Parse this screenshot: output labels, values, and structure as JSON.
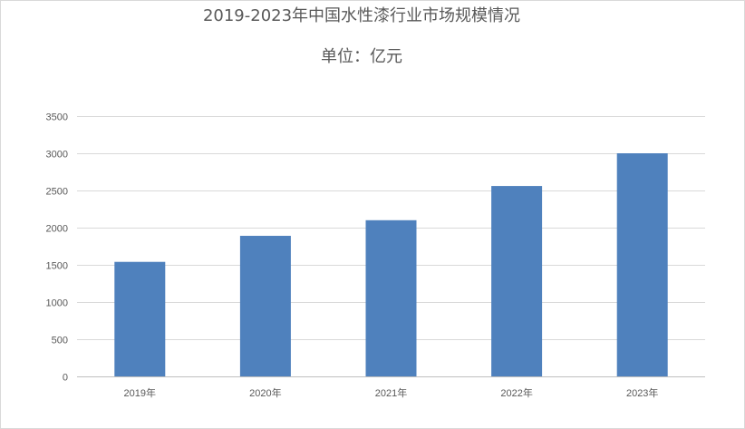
{
  "chart_data": {
    "type": "bar",
    "title": "2019-2023年中国水性漆行业市场规模情况",
    "subtitle": "单位：亿元",
    "categories": [
      "2019年",
      "2020年",
      "2021年",
      "2022年",
      "2023年"
    ],
    "values": [
      1540,
      1890,
      2100,
      2560,
      3000
    ],
    "ylim": [
      0,
      3500
    ],
    "yticks": [
      0,
      500,
      1000,
      1500,
      2000,
      2500,
      3000,
      3500
    ],
    "grid": true,
    "legend": "none",
    "colors": {
      "bar": "#4f81bd"
    }
  }
}
